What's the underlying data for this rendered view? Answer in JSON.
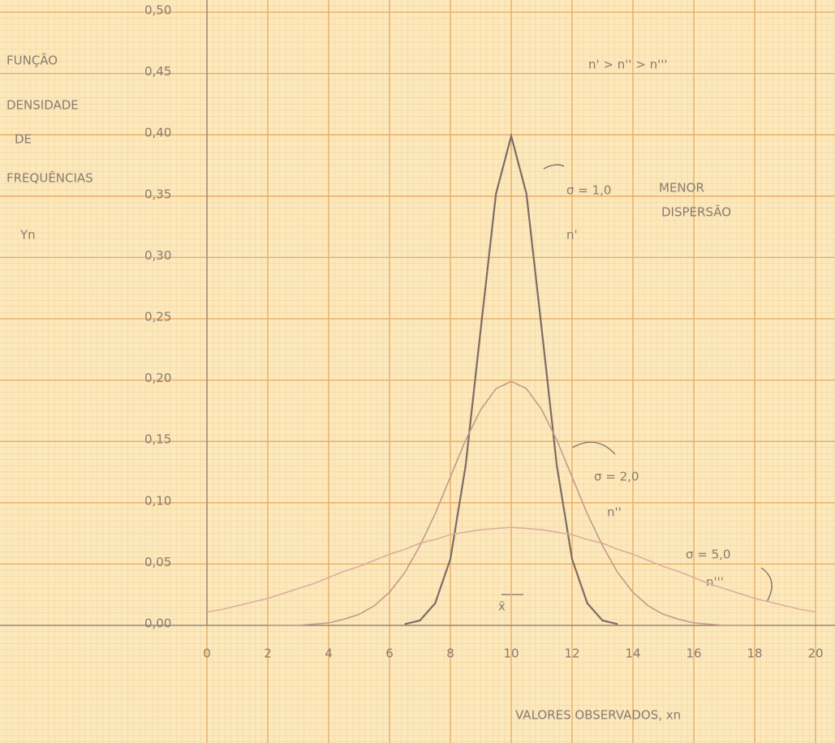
{
  "chart_data": {
    "type": "line",
    "ylabel_lines": [
      "FUNÇÃO",
      "DENSIDADE",
      "DE",
      "FREQUÊNCIAS",
      "Yn"
    ],
    "xlabel": "VALORES OBSERVADOS, xn",
    "annotations": [
      "n' > n'' > n'''",
      "MENOR",
      "DISPERSÃO",
      "n'",
      "n''",
      "n'''",
      "x̄"
    ],
    "x": [
      0,
      0.5,
      1,
      1.5,
      2,
      2.5,
      3,
      3.5,
      4,
      4.5,
      5,
      5.5,
      6,
      6.5,
      7,
      7.5,
      8,
      8.5,
      9,
      9.5,
      10,
      10.5,
      11,
      11.5,
      12,
      12.5,
      13,
      13.5,
      14,
      14.5,
      15,
      15.5,
      16,
      16.5,
      17,
      17.5,
      18,
      18.5,
      19,
      19.5,
      20
    ],
    "series": [
      {
        "name": "σ = 1,0",
        "color": "#7d6c64",
        "values": [
          null,
          null,
          null,
          null,
          null,
          null,
          null,
          null,
          null,
          null,
          null,
          null,
          null,
          0.001,
          0.004,
          0.018,
          0.054,
          0.13,
          0.242,
          0.352,
          0.399,
          0.352,
          0.242,
          0.13,
          0.054,
          0.018,
          0.004,
          0.001,
          null,
          null,
          null,
          null,
          null,
          null,
          null,
          null,
          null,
          null,
          null,
          null,
          null
        ]
      },
      {
        "name": "σ = 2,0",
        "color": "#c39a8c",
        "values": [
          null,
          null,
          null,
          null,
          0.0,
          0.0,
          0.0,
          0.001,
          0.002,
          0.005,
          0.009,
          0.016,
          0.027,
          0.043,
          0.065,
          0.091,
          0.121,
          0.151,
          0.176,
          0.193,
          0.199,
          0.193,
          0.176,
          0.151,
          0.121,
          0.091,
          0.065,
          0.043,
          0.027,
          0.016,
          0.009,
          0.005,
          0.002,
          0.001,
          0.0,
          0.0,
          0.0,
          null,
          null,
          null,
          null
        ]
      },
      {
        "name": "σ = 5,0",
        "color": "#dcaea0",
        "values": [
          0.011,
          0.013,
          0.016,
          0.019,
          0.022,
          0.026,
          0.03,
          0.034,
          0.039,
          0.044,
          0.048,
          0.053,
          0.058,
          0.062,
          0.067,
          0.07,
          0.074,
          0.076,
          0.078,
          0.079,
          0.08,
          0.079,
          0.078,
          0.076,
          0.074,
          0.07,
          0.067,
          0.062,
          0.058,
          0.053,
          0.048,
          0.044,
          0.039,
          0.034,
          0.03,
          0.026,
          0.022,
          0.019,
          0.016,
          0.013,
          0.011
        ]
      }
    ],
    "xlim": [
      0,
      20
    ],
    "xticks": [
      0,
      2,
      4,
      6,
      8,
      10,
      12,
      14,
      16,
      18,
      20
    ],
    "ylim": [
      0,
      0.5
    ],
    "yticks": [
      {
        "value": 0,
        "label": "0,00"
      },
      {
        "value": 0.05,
        "label": "0,05"
      },
      {
        "value": 0.1,
        "label": "0,10"
      },
      {
        "value": 0.15,
        "label": "0,15"
      },
      {
        "value": 0.2,
        "label": "0,20"
      },
      {
        "value": 0.25,
        "label": "0,25"
      },
      {
        "value": 0.3,
        "label": "0,30"
      },
      {
        "value": 0.35,
        "label": "0,35"
      },
      {
        "value": 0.4,
        "label": "0,40"
      },
      {
        "value": 0.45,
        "label": "0,45"
      },
      {
        "value": 0.5,
        "label": "0,50"
      }
    ],
    "grid": true
  }
}
